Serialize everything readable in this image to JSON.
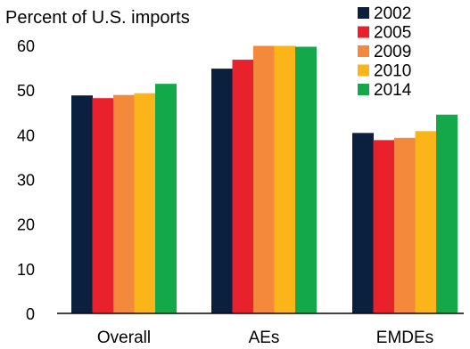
{
  "chart_data": {
    "type": "bar",
    "title": "",
    "ylabel": "Percent of U.S. imports",
    "xlabel": "",
    "categories": [
      "Overall",
      "AEs",
      "EMDEs"
    ],
    "ylim": [
      0,
      60
    ],
    "yticks": [
      0,
      10,
      20,
      30,
      40,
      50,
      60
    ],
    "grid": false,
    "legend_position": "top-right",
    "series": [
      {
        "name": "2002",
        "color": "#0b1f3f",
        "values": [
          48.8,
          54.8,
          40.4
        ]
      },
      {
        "name": "2005",
        "color": "#e8212d",
        "values": [
          48.2,
          56.8,
          38.8
        ]
      },
      {
        "name": "2009",
        "color": "#f4893c",
        "values": [
          48.9,
          59.9,
          39.3
        ]
      },
      {
        "name": "2010",
        "color": "#fbb518",
        "values": [
          49.3,
          59.9,
          40.8
        ]
      },
      {
        "name": "2014",
        "color": "#13a84a",
        "values": [
          51.4,
          59.7,
          44.5
        ]
      }
    ]
  }
}
